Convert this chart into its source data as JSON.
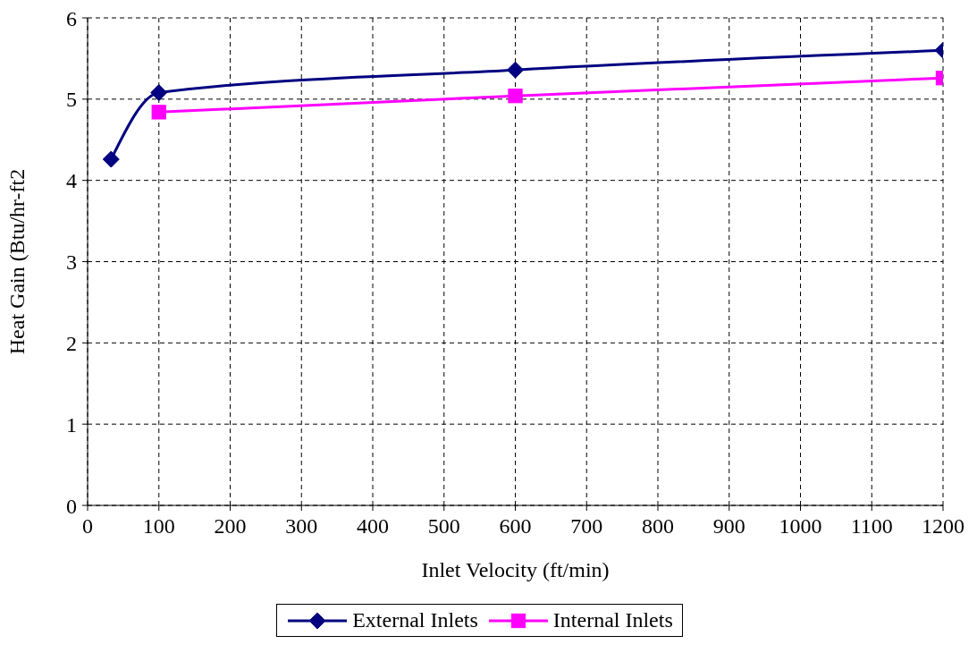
{
  "chart_data": {
    "type": "line",
    "xlabel": "Inlet Velocity (ft/min)",
    "ylabel": "Heat Gain (Btu/hr-ft2",
    "xlim": [
      0,
      1200
    ],
    "xticks": [
      0,
      100,
      200,
      300,
      400,
      500,
      600,
      700,
      800,
      900,
      1000,
      1100,
      1200
    ],
    "ylim": [
      0,
      6
    ],
    "yticks": [
      0,
      1,
      2,
      3,
      4,
      5,
      6
    ],
    "grid": true,
    "legend": "bottom",
    "line_style": "solid",
    "series": [
      {
        "name": "External Inlets",
        "color": "#000080",
        "marker": "diamond",
        "x": [
          33,
          100,
          600,
          1200
        ],
        "values": [
          4.26,
          5.08,
          5.36,
          5.6
        ]
      },
      {
        "name": "Internal Inlets",
        "color": "#ff00ff",
        "marker": "square",
        "x": [
          100,
          600,
          1200
        ],
        "values": [
          4.84,
          5.04,
          5.26
        ]
      }
    ]
  }
}
